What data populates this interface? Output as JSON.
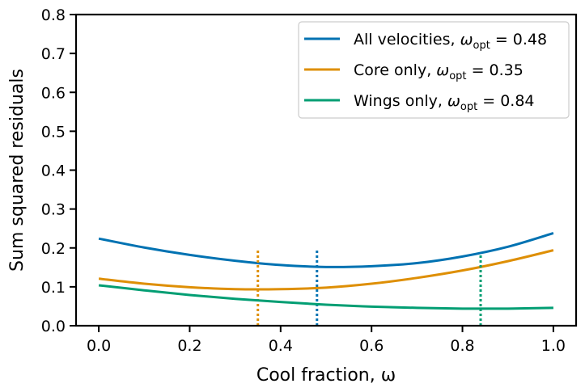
{
  "chart_data": {
    "type": "line",
    "xlabel": "Cool fraction, ω",
    "ylabel": "Sum squared residuals",
    "xlim": [
      -0.05,
      1.05
    ],
    "ylim": [
      0.0,
      0.8
    ],
    "xticks": [
      "0.0",
      "0.2",
      "0.4",
      "0.6",
      "0.8",
      "1.0"
    ],
    "yticks": [
      "0.0",
      "0.1",
      "0.2",
      "0.3",
      "0.4",
      "0.5",
      "0.6",
      "0.7",
      "0.8"
    ],
    "grid": false,
    "legend_position": "top-right",
    "x": [
      0.0,
      0.1,
      0.2,
      0.3,
      0.4,
      0.5,
      0.6,
      0.7,
      0.8,
      0.9,
      1.0
    ],
    "series": [
      {
        "name": "All velocities",
        "opt_label": "0.48",
        "color": "#0072b2",
        "values": [
          0.224,
          0.201,
          0.182,
          0.167,
          0.156,
          0.151,
          0.153,
          0.161,
          0.178,
          0.203,
          0.238
        ],
        "optimum": 0.48,
        "marker_top": 0.197
      },
      {
        "name": "Core only",
        "opt_label": "0.35",
        "color": "#de8f05",
        "values": [
          0.121,
          0.108,
          0.099,
          0.094,
          0.094,
          0.098,
          0.108,
          0.123,
          0.142,
          0.166,
          0.194
        ],
        "optimum": 0.35,
        "marker_top": 0.197
      },
      {
        "name": "Wings only",
        "opt_label": "0.84",
        "color": "#029e73",
        "values": [
          0.104,
          0.091,
          0.079,
          0.069,
          0.061,
          0.054,
          0.049,
          0.046,
          0.044,
          0.044,
          0.046
        ],
        "optimum": 0.84,
        "marker_top": 0.187
      }
    ]
  }
}
